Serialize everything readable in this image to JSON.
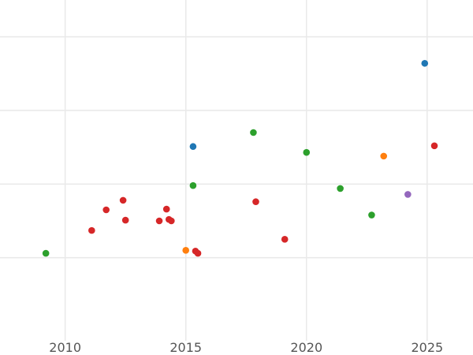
{
  "chart_data": {
    "type": "scatter",
    "title": "",
    "xlabel": "",
    "ylabel": "",
    "grid": true,
    "legend": "none",
    "xlim": [
      2007.3,
      2026.9
    ],
    "ylim": [
      -1.0,
      3.5
    ],
    "x_ticks": [
      2010,
      2015,
      2020,
      2025
    ],
    "x_tick_labels": [
      "2010",
      "2015",
      "2020",
      "2025"
    ],
    "y_gridlines": [
      0,
      1,
      2,
      3
    ],
    "series": [
      {
        "color": "#1f77b4",
        "points": [
          {
            "x": 2015.3,
            "y": 1.51
          },
          {
            "x": 2024.9,
            "y": 2.64
          }
        ]
      },
      {
        "color": "#ff7f0e",
        "points": [
          {
            "x": 2015.0,
            "y": 0.1
          },
          {
            "x": 2023.2,
            "y": 1.38
          }
        ]
      },
      {
        "color": "#2ca02c",
        "points": [
          {
            "x": 2009.2,
            "y": 0.06
          },
          {
            "x": 2015.3,
            "y": 0.98
          },
          {
            "x": 2017.8,
            "y": 1.7
          },
          {
            "x": 2020.0,
            "y": 1.43
          },
          {
            "x": 2021.4,
            "y": 0.94
          },
          {
            "x": 2022.7,
            "y": 0.58
          }
        ]
      },
      {
        "color": "#d62728",
        "points": [
          {
            "x": 2011.1,
            "y": 0.37
          },
          {
            "x": 2011.7,
            "y": 0.65
          },
          {
            "x": 2012.4,
            "y": 0.78
          },
          {
            "x": 2012.5,
            "y": 0.51
          },
          {
            "x": 2013.9,
            "y": 0.5
          },
          {
            "x": 2014.2,
            "y": 0.66
          },
          {
            "x": 2014.3,
            "y": 0.52
          },
          {
            "x": 2014.4,
            "y": 0.5
          },
          {
            "x": 2015.4,
            "y": 0.09
          },
          {
            "x": 2015.5,
            "y": 0.06
          },
          {
            "x": 2017.9,
            "y": 0.76
          },
          {
            "x": 2019.1,
            "y": 0.25
          },
          {
            "x": 2025.3,
            "y": 1.52
          }
        ]
      },
      {
        "color": "#9467bd",
        "points": [
          {
            "x": 2024.2,
            "y": 0.86
          }
        ]
      }
    ]
  }
}
